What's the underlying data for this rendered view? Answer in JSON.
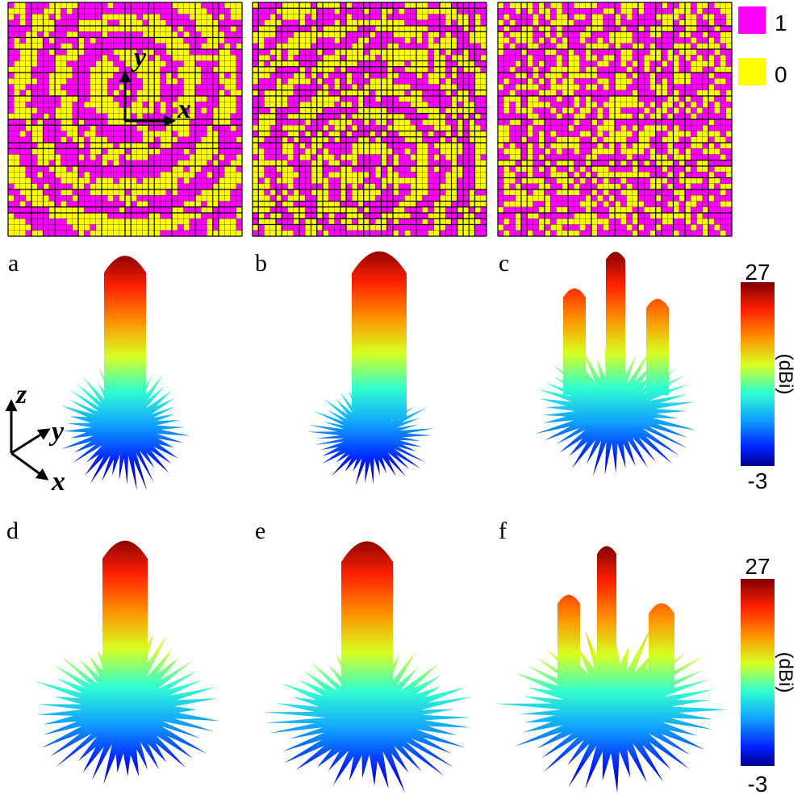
{
  "legend": {
    "items": [
      {
        "label": "1",
        "color": "#ff00ff"
      },
      {
        "label": "0",
        "color": "#ffff00"
      }
    ]
  },
  "axis_glyphs": {
    "top": {
      "x": "x",
      "y": "y"
    },
    "bottom": {
      "x": "x",
      "y": "y",
      "z": "z"
    }
  },
  "panels": [
    "a",
    "b",
    "c",
    "d",
    "e",
    "f"
  ],
  "colorbars": [
    {
      "max": 27,
      "min": -3,
      "unit": "(dBi)"
    },
    {
      "max": 27,
      "min": -3,
      "unit": "(dBi)"
    }
  ]
}
